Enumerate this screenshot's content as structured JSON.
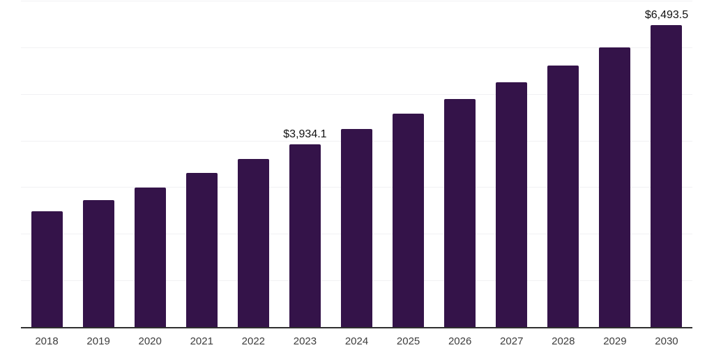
{
  "chart_data": {
    "type": "bar",
    "title": "",
    "categories": [
      "2018",
      "2019",
      "2020",
      "2021",
      "2022",
      "2023",
      "2024",
      "2025",
      "2026",
      "2027",
      "2028",
      "2029",
      "2030"
    ],
    "values": [
      2500,
      2740,
      3010,
      3320,
      3620,
      3934.1,
      4260,
      4590,
      4910,
      5265,
      5620,
      6010,
      6493.5
    ],
    "value_labels": [
      "",
      "",
      "",
      "",
      "",
      "$3,934.1",
      "",
      "",
      "",
      "",
      "",
      "",
      "$6,493.5"
    ],
    "xlabel": "",
    "ylabel": "",
    "ylim": [
      0,
      7000
    ],
    "gridline_step": 1000,
    "grid": true,
    "legend": false,
    "colors": {
      "bar": "#341349",
      "gridline": "#f1f1f3",
      "axis": "#2f2f2f",
      "tick_label": "#3d3d3d",
      "value_label": "#111111"
    }
  }
}
